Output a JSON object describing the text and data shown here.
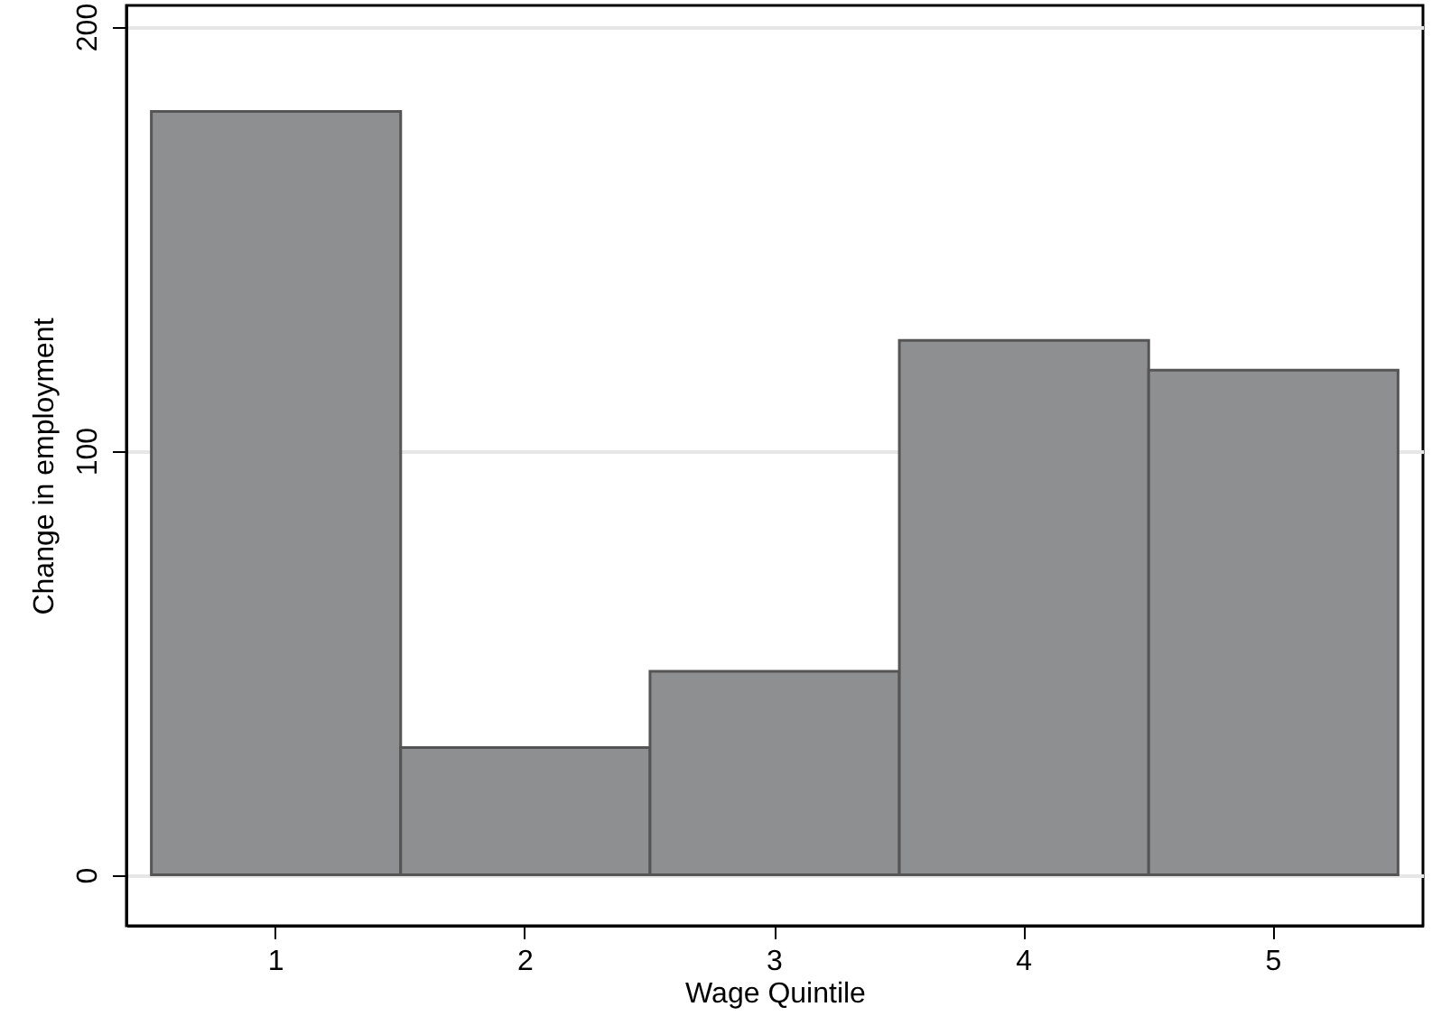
{
  "chart_data": {
    "type": "bar",
    "xlabel": "Wage Quintile",
    "ylabel": "Change in employment",
    "categories": [
      "1",
      "2",
      "3",
      "4",
      "5"
    ],
    "values": [
      180,
      30,
      48,
      126,
      119
    ],
    "color": "#8e8f91",
    "ylim": [
      -12,
      205
    ],
    "yticks": [
      0,
      100,
      200
    ],
    "grid": "y"
  }
}
